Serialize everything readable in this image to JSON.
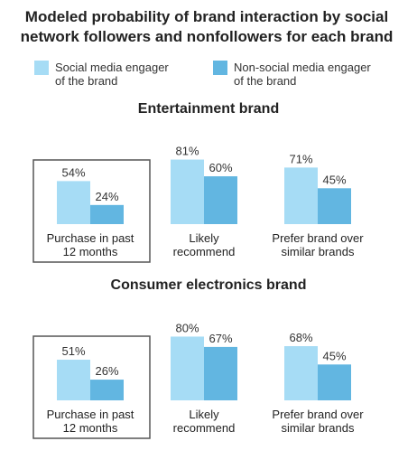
{
  "chart_data": {
    "type": "bar",
    "title_lines": [
      "Modeled probability of brand interaction by social",
      "network followers and nonfollowers for each brand"
    ],
    "legend": [
      {
        "lines": [
          "Social media engager",
          "of the brand"
        ],
        "color": "#a6dcf5"
      },
      {
        "lines": [
          "Non-social media engager",
          "of the brand"
        ],
        "color": "#62b6e1"
      }
    ],
    "unit": "%",
    "highlighted_category": 0,
    "panels": [
      {
        "title": "Entertainment brand",
        "categories": [
          [
            "Purchase in past",
            "12 months"
          ],
          [
            "Likely",
            "recommend"
          ],
          [
            "Prefer brand over",
            "similar brands"
          ]
        ],
        "series": [
          {
            "values": [
              54,
              81,
              71
            ]
          },
          {
            "values": [
              24,
              60,
              45
            ]
          }
        ]
      },
      {
        "title": "Consumer electronics brand",
        "categories": [
          [
            "Purchase in past",
            "12 months"
          ],
          [
            "Likely",
            "recommend"
          ],
          [
            "Prefer brand over",
            "similar brands"
          ]
        ],
        "series": [
          {
            "values": [
              51,
              80,
              68
            ]
          },
          {
            "values": [
              26,
              67,
              45
            ]
          }
        ]
      }
    ]
  }
}
